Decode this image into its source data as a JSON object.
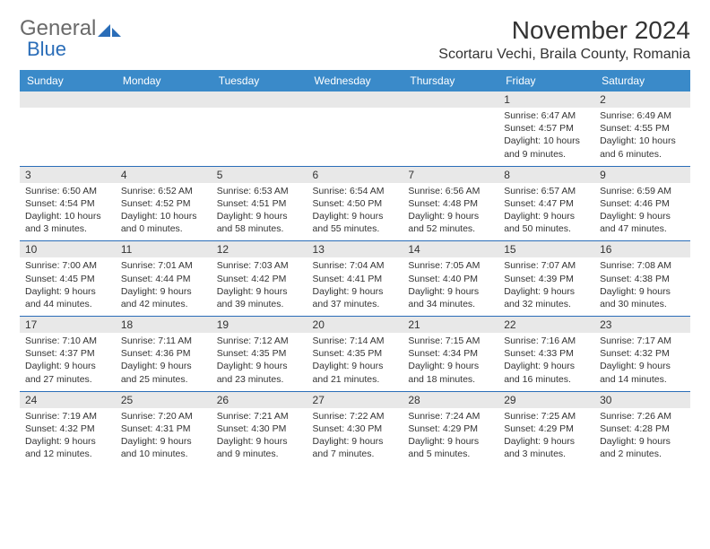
{
  "logo": {
    "word1": "General",
    "word2": "Blue"
  },
  "title": "November 2024",
  "location": "Scortaru Vechi, Braila County, Romania",
  "day_headers": [
    "Sunday",
    "Monday",
    "Tuesday",
    "Wednesday",
    "Thursday",
    "Friday",
    "Saturday"
  ],
  "colors": {
    "header_bg": "#3a8ac9",
    "accent": "#2a6db8",
    "stripe": "#e8e8e8",
    "text": "#333333"
  },
  "weeks": [
    [
      null,
      null,
      null,
      null,
      null,
      {
        "n": "1",
        "sr": "Sunrise: 6:47 AM",
        "ss": "Sunset: 4:57 PM",
        "d1": "Daylight: 10 hours",
        "d2": "and 9 minutes."
      },
      {
        "n": "2",
        "sr": "Sunrise: 6:49 AM",
        "ss": "Sunset: 4:55 PM",
        "d1": "Daylight: 10 hours",
        "d2": "and 6 minutes."
      }
    ],
    [
      {
        "n": "3",
        "sr": "Sunrise: 6:50 AM",
        "ss": "Sunset: 4:54 PM",
        "d1": "Daylight: 10 hours",
        "d2": "and 3 minutes."
      },
      {
        "n": "4",
        "sr": "Sunrise: 6:52 AM",
        "ss": "Sunset: 4:52 PM",
        "d1": "Daylight: 10 hours",
        "d2": "and 0 minutes."
      },
      {
        "n": "5",
        "sr": "Sunrise: 6:53 AM",
        "ss": "Sunset: 4:51 PM",
        "d1": "Daylight: 9 hours",
        "d2": "and 58 minutes."
      },
      {
        "n": "6",
        "sr": "Sunrise: 6:54 AM",
        "ss": "Sunset: 4:50 PM",
        "d1": "Daylight: 9 hours",
        "d2": "and 55 minutes."
      },
      {
        "n": "7",
        "sr": "Sunrise: 6:56 AM",
        "ss": "Sunset: 4:48 PM",
        "d1": "Daylight: 9 hours",
        "d2": "and 52 minutes."
      },
      {
        "n": "8",
        "sr": "Sunrise: 6:57 AM",
        "ss": "Sunset: 4:47 PM",
        "d1": "Daylight: 9 hours",
        "d2": "and 50 minutes."
      },
      {
        "n": "9",
        "sr": "Sunrise: 6:59 AM",
        "ss": "Sunset: 4:46 PM",
        "d1": "Daylight: 9 hours",
        "d2": "and 47 minutes."
      }
    ],
    [
      {
        "n": "10",
        "sr": "Sunrise: 7:00 AM",
        "ss": "Sunset: 4:45 PM",
        "d1": "Daylight: 9 hours",
        "d2": "and 44 minutes."
      },
      {
        "n": "11",
        "sr": "Sunrise: 7:01 AM",
        "ss": "Sunset: 4:44 PM",
        "d1": "Daylight: 9 hours",
        "d2": "and 42 minutes."
      },
      {
        "n": "12",
        "sr": "Sunrise: 7:03 AM",
        "ss": "Sunset: 4:42 PM",
        "d1": "Daylight: 9 hours",
        "d2": "and 39 minutes."
      },
      {
        "n": "13",
        "sr": "Sunrise: 7:04 AM",
        "ss": "Sunset: 4:41 PM",
        "d1": "Daylight: 9 hours",
        "d2": "and 37 minutes."
      },
      {
        "n": "14",
        "sr": "Sunrise: 7:05 AM",
        "ss": "Sunset: 4:40 PM",
        "d1": "Daylight: 9 hours",
        "d2": "and 34 minutes."
      },
      {
        "n": "15",
        "sr": "Sunrise: 7:07 AM",
        "ss": "Sunset: 4:39 PM",
        "d1": "Daylight: 9 hours",
        "d2": "and 32 minutes."
      },
      {
        "n": "16",
        "sr": "Sunrise: 7:08 AM",
        "ss": "Sunset: 4:38 PM",
        "d1": "Daylight: 9 hours",
        "d2": "and 30 minutes."
      }
    ],
    [
      {
        "n": "17",
        "sr": "Sunrise: 7:10 AM",
        "ss": "Sunset: 4:37 PM",
        "d1": "Daylight: 9 hours",
        "d2": "and 27 minutes."
      },
      {
        "n": "18",
        "sr": "Sunrise: 7:11 AM",
        "ss": "Sunset: 4:36 PM",
        "d1": "Daylight: 9 hours",
        "d2": "and 25 minutes."
      },
      {
        "n": "19",
        "sr": "Sunrise: 7:12 AM",
        "ss": "Sunset: 4:35 PM",
        "d1": "Daylight: 9 hours",
        "d2": "and 23 minutes."
      },
      {
        "n": "20",
        "sr": "Sunrise: 7:14 AM",
        "ss": "Sunset: 4:35 PM",
        "d1": "Daylight: 9 hours",
        "d2": "and 21 minutes."
      },
      {
        "n": "21",
        "sr": "Sunrise: 7:15 AM",
        "ss": "Sunset: 4:34 PM",
        "d1": "Daylight: 9 hours",
        "d2": "and 18 minutes."
      },
      {
        "n": "22",
        "sr": "Sunrise: 7:16 AM",
        "ss": "Sunset: 4:33 PM",
        "d1": "Daylight: 9 hours",
        "d2": "and 16 minutes."
      },
      {
        "n": "23",
        "sr": "Sunrise: 7:17 AM",
        "ss": "Sunset: 4:32 PM",
        "d1": "Daylight: 9 hours",
        "d2": "and 14 minutes."
      }
    ],
    [
      {
        "n": "24",
        "sr": "Sunrise: 7:19 AM",
        "ss": "Sunset: 4:32 PM",
        "d1": "Daylight: 9 hours",
        "d2": "and 12 minutes."
      },
      {
        "n": "25",
        "sr": "Sunrise: 7:20 AM",
        "ss": "Sunset: 4:31 PM",
        "d1": "Daylight: 9 hours",
        "d2": "and 10 minutes."
      },
      {
        "n": "26",
        "sr": "Sunrise: 7:21 AM",
        "ss": "Sunset: 4:30 PM",
        "d1": "Daylight: 9 hours",
        "d2": "and 9 minutes."
      },
      {
        "n": "27",
        "sr": "Sunrise: 7:22 AM",
        "ss": "Sunset: 4:30 PM",
        "d1": "Daylight: 9 hours",
        "d2": "and 7 minutes."
      },
      {
        "n": "28",
        "sr": "Sunrise: 7:24 AM",
        "ss": "Sunset: 4:29 PM",
        "d1": "Daylight: 9 hours",
        "d2": "and 5 minutes."
      },
      {
        "n": "29",
        "sr": "Sunrise: 7:25 AM",
        "ss": "Sunset: 4:29 PM",
        "d1": "Daylight: 9 hours",
        "d2": "and 3 minutes."
      },
      {
        "n": "30",
        "sr": "Sunrise: 7:26 AM",
        "ss": "Sunset: 4:28 PM",
        "d1": "Daylight: 9 hours",
        "d2": "and 2 minutes."
      }
    ]
  ]
}
